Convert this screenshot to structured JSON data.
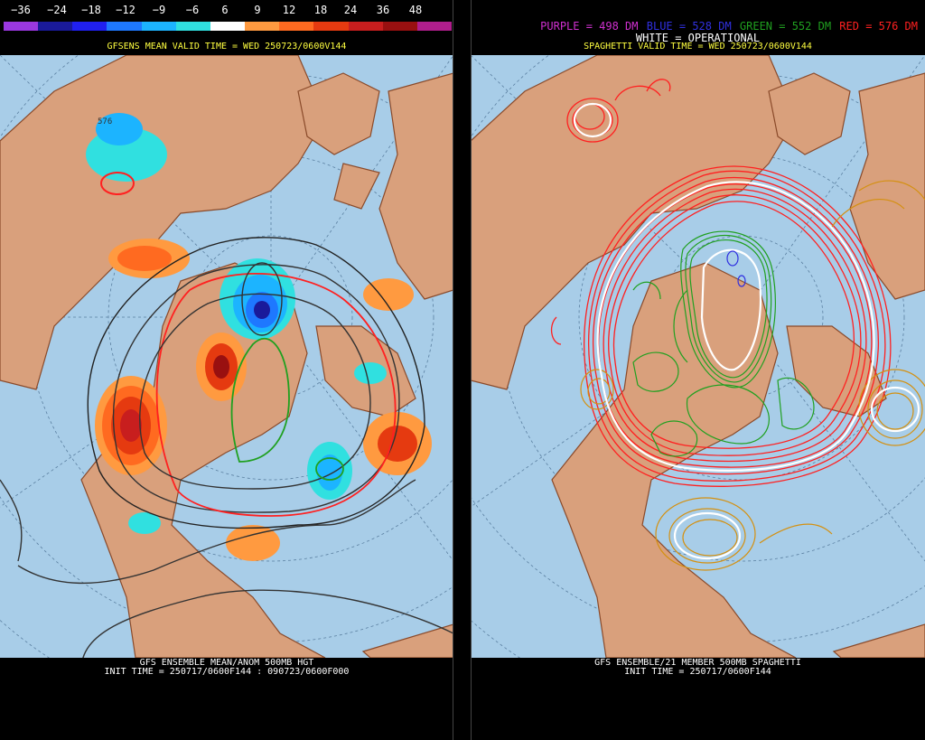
{
  "left_panel": {
    "scale_labels": [
      "−36",
      "−24",
      "−18",
      "−12",
      "−9",
      "−6",
      "6",
      "9",
      "12",
      "18",
      "24",
      "36",
      "48"
    ],
    "scale_colors": [
      "#9a38e0",
      "#1a1a9a",
      "#2020f0",
      "#1e78ff",
      "#1cb4ff",
      "#30e0e0",
      "#ffffff",
      "#ff9a40",
      "#ff6a20",
      "#e53a10",
      "#c81e1e",
      "#991010",
      "#b01e8c"
    ],
    "title": "GFSENS MEAN VALID TIME = WED 250723/0600V144",
    "contour_label": "576",
    "bottom_line1": "GFS ENSEMBLE MEAN/ANOM 500MB HGT",
    "bottom_line2": "INIT TIME = 250717/0600F144 : 090723/0600F000"
  },
  "right_panel": {
    "legend": [
      {
        "text": "PURPLE = 498 DM",
        "color": "#d030d0"
      },
      {
        "text": "BLUE = 528 DM",
        "color": "#3030e0"
      },
      {
        "text": "GREEN = 552 DM",
        "color": "#20a020"
      },
      {
        "text": "RED = 576 DM",
        "color": "#ff2020"
      }
    ],
    "legend_line2": "WHITE = OPERATIONAL",
    "title": "SPAGHETTI VALID TIME = WED 250723/0600V144",
    "bottom_line1": "GFS ENSEMBLE/21 MEMBER 500MB SPAGHETTI",
    "bottom_line2": "INIT TIME = 250717/0600F144"
  },
  "colors": {
    "ocean": "#a8cde8",
    "land": "#d9a07c",
    "coast": "#8a4a2a"
  }
}
